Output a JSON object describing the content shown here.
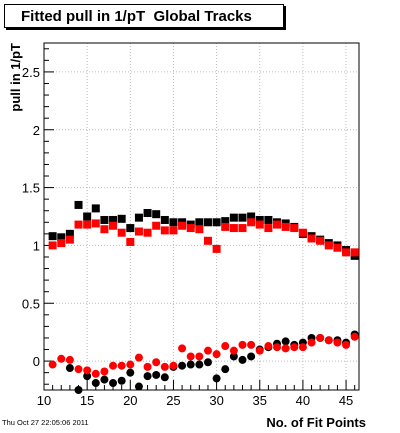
{
  "title": "Fitted pull in 1/pT  Global Tracks",
  "footer": "Thu Oct 27 22:05:06 2011",
  "chart_data": {
    "type": "scatter",
    "title": "Fitted pull in 1/pT  Global Tracks",
    "xlabel": "No. of Fit Points",
    "ylabel": "pull in 1/pT",
    "xlim": [
      10,
      46.5
    ],
    "ylim": [
      -0.25,
      2.75
    ],
    "x_ticks": [
      10,
      15,
      20,
      25,
      30,
      35,
      40,
      45
    ],
    "y_ticks": [
      0,
      0.5,
      1,
      1.5,
      2,
      2.5
    ],
    "y_tick_labels": [
      "0",
      "0.5",
      "1",
      "1.5",
      "2",
      "2.5"
    ],
    "x_tick_labels": [
      "10",
      "15",
      "20",
      "25",
      "30",
      "35",
      "40",
      "45"
    ],
    "grid": true,
    "series": [
      {
        "marker": "square",
        "color": "#000000",
        "x": [
          11,
          12,
          13,
          14,
          15,
          16,
          17,
          18,
          19,
          20,
          21,
          22,
          23,
          24,
          25,
          26,
          27,
          28,
          29,
          30,
          31,
          32,
          33,
          34,
          35,
          36,
          37,
          38,
          39,
          40,
          41,
          42,
          43,
          44,
          45,
          46
        ],
        "y": [
          1.08,
          1.07,
          1.1,
          1.35,
          1.25,
          1.32,
          1.22,
          1.22,
          1.23,
          1.15,
          1.24,
          1.28,
          1.27,
          1.22,
          1.2,
          1.2,
          1.18,
          1.2,
          1.2,
          1.2,
          1.21,
          1.24,
          1.24,
          1.25,
          1.22,
          1.22,
          1.2,
          1.19,
          1.16,
          1.1,
          1.08,
          1.05,
          1.02,
          1.0,
          0.96,
          0.91
        ]
      },
      {
        "marker": "square",
        "color": "#ff0000",
        "x": [
          11,
          12,
          13,
          14,
          15,
          16,
          17,
          18,
          19,
          20,
          21,
          22,
          23,
          24,
          25,
          26,
          27,
          28,
          29,
          30,
          31,
          32,
          33,
          34,
          35,
          36,
          37,
          38,
          39,
          40,
          41,
          42,
          43,
          44,
          45,
          46
        ],
        "y": [
          1.0,
          1.02,
          1.05,
          1.18,
          1.18,
          1.19,
          1.14,
          1.17,
          1.11,
          1.03,
          1.12,
          1.11,
          1.17,
          1.13,
          1.13,
          1.17,
          1.15,
          1.14,
          1.04,
          0.97,
          1.16,
          1.15,
          1.15,
          1.2,
          1.18,
          1.15,
          1.18,
          1.16,
          1.15,
          1.11,
          1.06,
          1.04,
          1.0,
          0.98,
          0.94,
          0.94
        ]
      },
      {
        "marker": "circle",
        "color": "#000000",
        "x": [
          13,
          14,
          15,
          16,
          17,
          18,
          19,
          20,
          21,
          22,
          23,
          24,
          25,
          26,
          27,
          28,
          29,
          30,
          31,
          32,
          33,
          34,
          35,
          36,
          37,
          38,
          39,
          40,
          41,
          42,
          43,
          44,
          45,
          46
        ],
        "y": [
          -0.06,
          -0.25,
          -0.13,
          -0.19,
          -0.16,
          -0.19,
          -0.17,
          -0.1,
          -0.22,
          -0.13,
          -0.12,
          -0.14,
          -0.05,
          -0.04,
          -0.03,
          -0.03,
          -0.01,
          -0.15,
          -0.07,
          0.04,
          0.01,
          0.04,
          0.1,
          0.12,
          0.15,
          0.17,
          0.14,
          0.16,
          0.2,
          0.2,
          0.18,
          0.18,
          0.16,
          0.23
        ]
      },
      {
        "marker": "circle",
        "color": "#ff0000",
        "x": [
          11,
          12,
          13,
          14,
          15,
          16,
          17,
          18,
          19,
          20,
          21,
          22,
          23,
          24,
          25,
          26,
          27,
          28,
          29,
          30,
          31,
          32,
          33,
          34,
          35,
          36,
          37,
          38,
          39,
          40,
          41,
          42,
          43,
          44,
          45,
          46
        ],
        "y": [
          -0.03,
          0.02,
          0.01,
          -0.07,
          -0.08,
          -0.11,
          -0.09,
          -0.04,
          -0.04,
          -0.03,
          0.03,
          -0.05,
          -0.01,
          -0.05,
          -0.04,
          0.11,
          0.04,
          0.04,
          0.09,
          0.06,
          0.13,
          0.09,
          0.14,
          0.14,
          0.09,
          0.13,
          0.12,
          0.11,
          0.12,
          0.12,
          0.16,
          0.2,
          0.18,
          0.16,
          0.14,
          0.21
        ]
      }
    ]
  }
}
